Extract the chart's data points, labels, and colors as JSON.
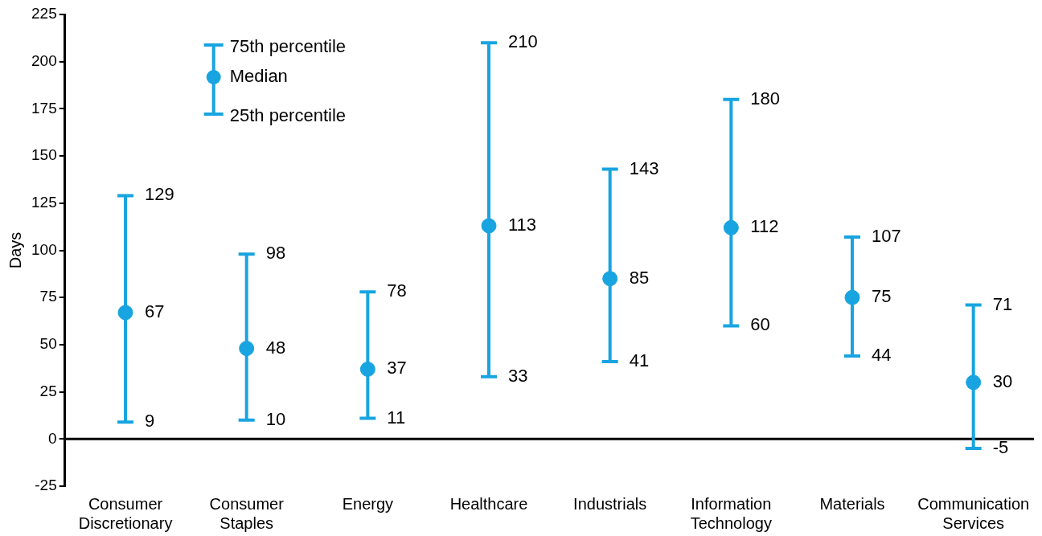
{
  "chart_data": {
    "type": "scatter",
    "ylabel": "Days",
    "categories": [
      "Consumer Discretionary",
      "Consumer Staples",
      "Energy",
      "Healthcare",
      "Industrials",
      "Information Technology",
      "Materials",
      "Communication Services"
    ],
    "series": [
      {
        "name": "Median",
        "color": "#18a4e0",
        "values": [
          67,
          48,
          37,
          113,
          85,
          112,
          75,
          30
        ],
        "errors": [
          [
            9,
            129
          ],
          [
            10,
            98
          ],
          [
            11,
            78
          ],
          [
            33,
            210
          ],
          [
            41,
            143
          ],
          [
            60,
            180
          ],
          [
            44,
            107
          ],
          [
            -5,
            71
          ]
        ]
      }
    ],
    "data_labels": true,
    "annotations": [
      "75th percentile",
      "25th percentile",
      {
        "text": "129",
        "x": "Consumer Discretionary",
        "y": 129
      },
      {
        "text": "9",
        "x": "Consumer Discretionary",
        "y": 9
      },
      {
        "text": "98",
        "x": "Consumer Staples",
        "y": 98
      },
      {
        "text": "10",
        "x": "Consumer Staples",
        "y": 10
      },
      {
        "text": "78",
        "x": "Energy",
        "y": 78
      },
      {
        "text": "11",
        "x": "Energy",
        "y": 11
      },
      {
        "text": "210",
        "x": "Healthcare",
        "y": 210
      },
      {
        "text": "33",
        "x": "Healthcare",
        "y": 33
      },
      {
        "text": "143",
        "x": "Industrials",
        "y": 143
      },
      {
        "text": "41",
        "x": "Industrials",
        "y": 41
      },
      {
        "text": "180",
        "x": "Information Technology",
        "y": 180
      },
      {
        "text": "60",
        "x": "Information Technology",
        "y": 60
      },
      {
        "text": "107",
        "x": "Materials",
        "y": 107
      },
      {
        "text": "44",
        "x": "Materials",
        "y": 44
      },
      {
        "text": "71",
        "x": "Communication Services",
        "y": 71
      },
      {
        "text": "-5",
        "x": "Communication Services",
        "y": -5
      }
    ],
    "ref_lines": [
      {
        "axis": "y",
        "value": 0,
        "color": "#000000"
      }
    ],
    "ylim": [
      -25,
      225
    ],
    "yticks": [
      -25,
      0,
      25,
      50,
      75,
      100,
      125,
      150,
      175,
      200,
      225
    ],
    "grid": false,
    "legend": "top left",
    "marker": "circle"
  }
}
